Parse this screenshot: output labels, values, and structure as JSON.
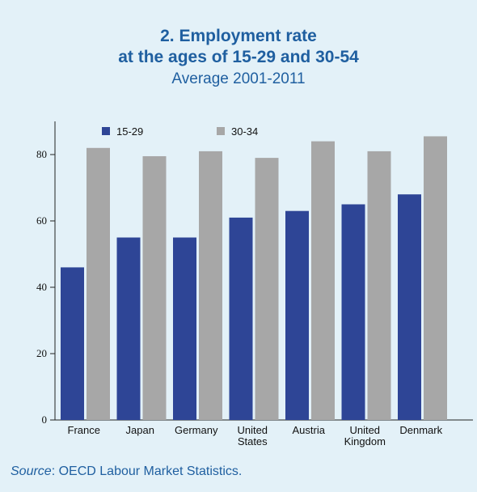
{
  "title_line1": "2. Employment rate",
  "title_line2": "at the ages of 15-29 and 30-54",
  "subtitle": "Average 2001-2011",
  "source_label": "Source",
  "source_text": ": OECD Labour Market Statistics.",
  "colors": {
    "background": "#e3f1f8",
    "title": "#1f5fa0",
    "series_15_29": "#2e4596",
    "series_30_34": "#a7a7a7"
  },
  "chart_data": {
    "type": "bar",
    "categories": [
      "France",
      "Japan",
      "Germany",
      "United States",
      "Austria",
      "United Kingdom",
      "Denmark"
    ],
    "category_lines": [
      [
        "France"
      ],
      [
        "Japan"
      ],
      [
        "Germany"
      ],
      [
        "United",
        "States"
      ],
      [
        "Austria"
      ],
      [
        "United",
        "Kingdom"
      ],
      [
        "Denmark"
      ]
    ],
    "series": [
      {
        "name": "15-29",
        "values": [
          46,
          55,
          55,
          61,
          63,
          65,
          68
        ]
      },
      {
        "name": "30-34",
        "values": [
          82,
          79.5,
          81,
          79,
          84,
          81,
          85.5
        ]
      }
    ],
    "yticks": [
      0,
      20,
      40,
      60,
      80
    ],
    "ylim": [
      0,
      90
    ],
    "legend": "top-left",
    "grid": false
  }
}
